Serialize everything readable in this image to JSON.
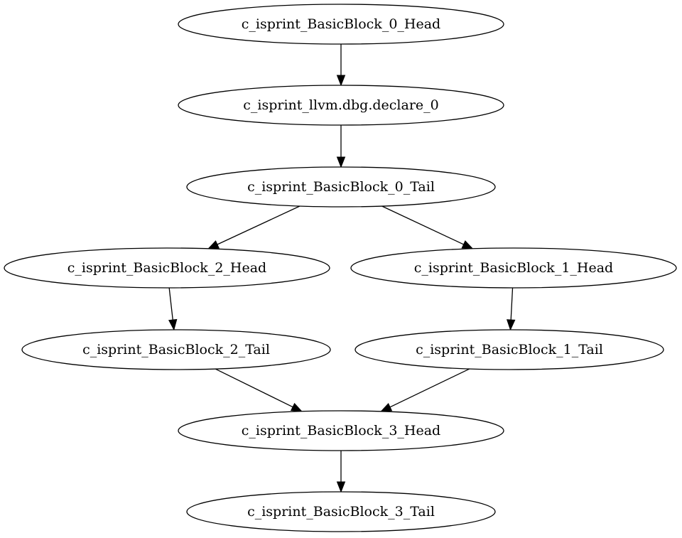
{
  "graph": {
    "nodes": [
      {
        "id": "n0",
        "label": "c_isprint_BasicBlock_0_Head"
      },
      {
        "id": "n1",
        "label": "c_isprint_llvm.dbg.declare_0"
      },
      {
        "id": "n2",
        "label": "c_isprint_BasicBlock_0_Tail"
      },
      {
        "id": "n3",
        "label": "c_isprint_BasicBlock_2_Head"
      },
      {
        "id": "n4",
        "label": "c_isprint_BasicBlock_1_Head"
      },
      {
        "id": "n5",
        "label": "c_isprint_BasicBlock_2_Tail"
      },
      {
        "id": "n6",
        "label": "c_isprint_BasicBlock_1_Tail"
      },
      {
        "id": "n7",
        "label": "c_isprint_BasicBlock_3_Head"
      },
      {
        "id": "n8",
        "label": "c_isprint_BasicBlock_3_Tail"
      }
    ],
    "edges": [
      {
        "from": "n0",
        "to": "n1"
      },
      {
        "from": "n1",
        "to": "n2"
      },
      {
        "from": "n2",
        "to": "n3"
      },
      {
        "from": "n2",
        "to": "n4"
      },
      {
        "from": "n3",
        "to": "n5"
      },
      {
        "from": "n4",
        "to": "n6"
      },
      {
        "from": "n5",
        "to": "n7"
      },
      {
        "from": "n6",
        "to": "n7"
      },
      {
        "from": "n7",
        "to": "n8"
      }
    ]
  }
}
